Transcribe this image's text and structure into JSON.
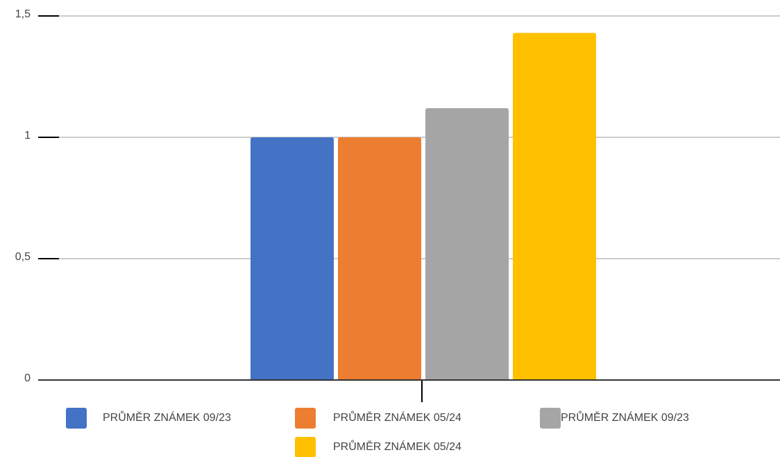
{
  "chart_data": {
    "type": "bar",
    "categories": [
      null
    ],
    "series": [
      {
        "name": "PRŮMĚR ZNÁMEK 09/23",
        "color": "#4472c4",
        "values": [
          1
        ]
      },
      {
        "name": "PRŮMĚR ZNÁMEK 05/24",
        "color": "#ed7d31",
        "values": [
          1
        ]
      },
      {
        "name": "PRŮMĚR ZNÁMEK 09/23",
        "color": "#a5a5a5",
        "values": [
          1.12
        ]
      },
      {
        "name": "PRŮMĚR ZNÁMEK 05/24",
        "color": "#ffc000",
        "values": [
          1.43
        ]
      }
    ],
    "ylim": [
      0,
      1.5
    ],
    "yticks": [
      0,
      {
        "value": 0.5,
        "label": "0,5"
      },
      1,
      {
        "value": 1.5,
        "label": "1,5"
      }
    ],
    "grid": true,
    "legend": "bottom"
  }
}
